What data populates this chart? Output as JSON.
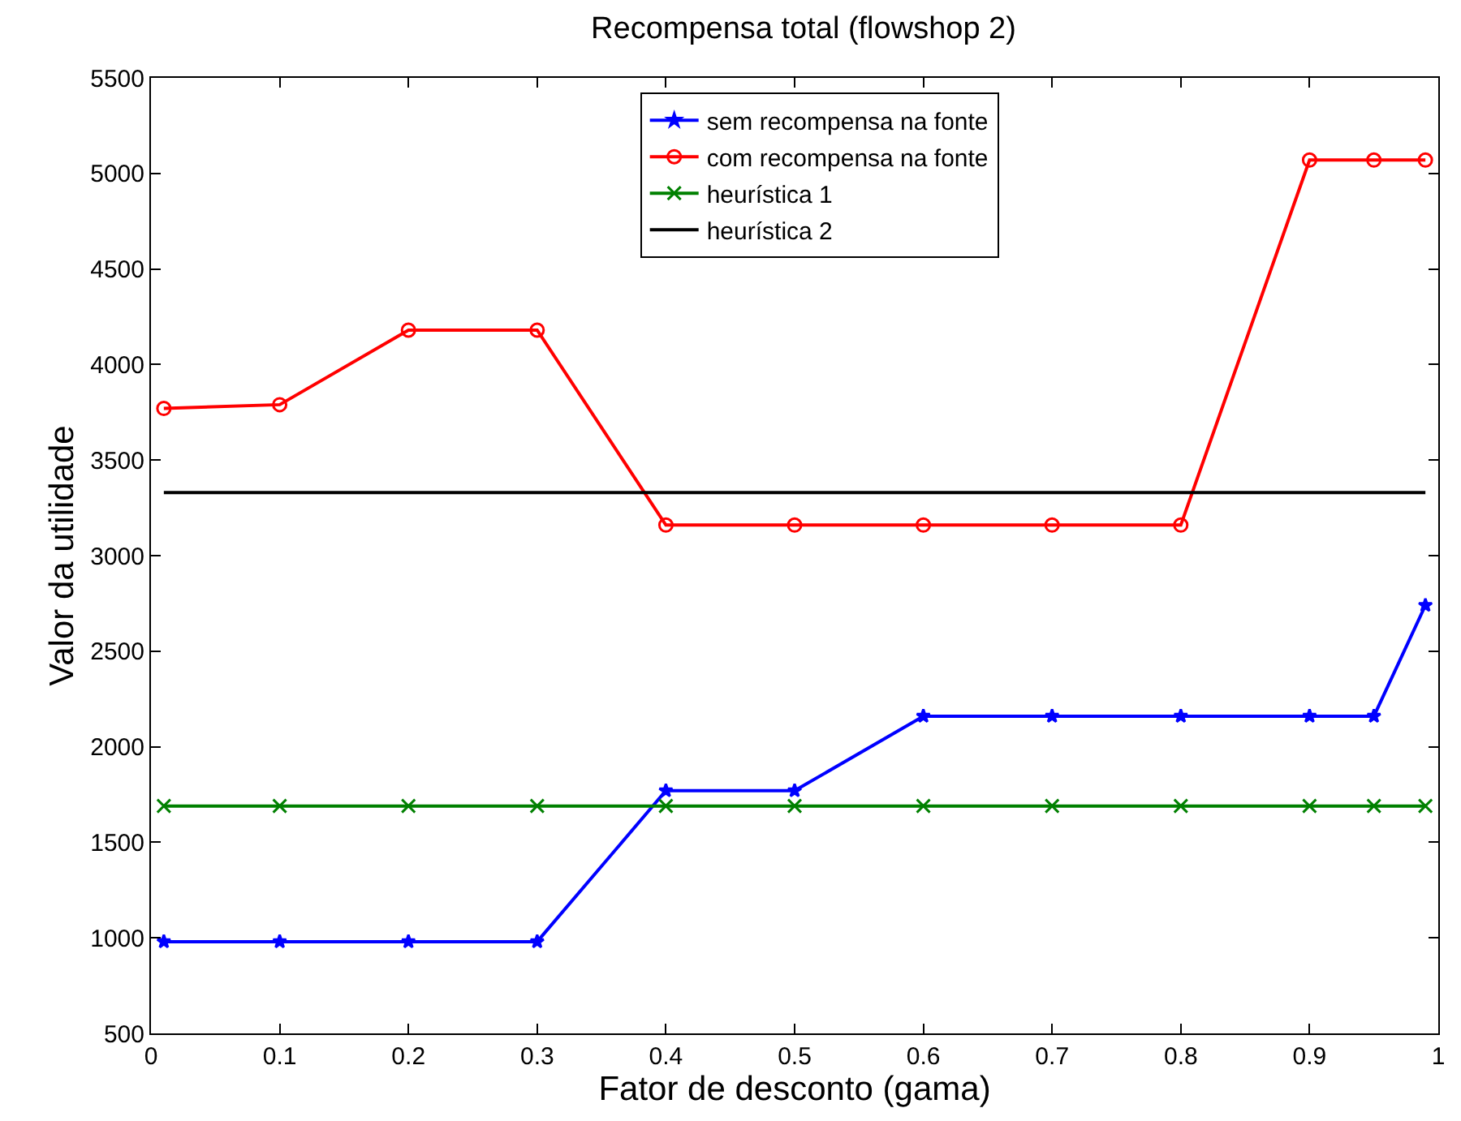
{
  "chart_data": {
    "type": "line",
    "title": "Recompensa total (flowshop 2)",
    "xlabel": "Fator de desconto (gama)",
    "ylabel": "Valor da utilidade",
    "x": [
      0.01,
      0.1,
      0.2,
      0.3,
      0.4,
      0.5,
      0.6,
      0.7,
      0.8,
      0.9,
      0.95,
      0.99
    ],
    "series": [
      {
        "name": "sem recompensa na fonte",
        "color": "#0000ff",
        "marker": "star",
        "values": [
          980,
          980,
          980,
          980,
          1770,
          1770,
          2160,
          2160,
          2160,
          2160,
          2160,
          2740
        ]
      },
      {
        "name": "com recompensa na fonte",
        "color": "#ff0000",
        "marker": "circle",
        "values": [
          3770,
          3790,
          4180,
          4180,
          3160,
          3160,
          3160,
          3160,
          3160,
          5070,
          5070,
          5070
        ]
      },
      {
        "name": "heurística 1",
        "color": "#008000",
        "marker": "cross",
        "values": [
          1690,
          1690,
          1690,
          1690,
          1690,
          1690,
          1690,
          1690,
          1690,
          1690,
          1690,
          1690
        ]
      },
      {
        "name": "heurística 2",
        "color": "#000000",
        "marker": "none",
        "values": [
          3330,
          3330,
          3330,
          3330,
          3330,
          3330,
          3330,
          3330,
          3330,
          3330,
          3330,
          3330
        ]
      }
    ],
    "xlim": [
      0,
      1
    ],
    "xticks": [
      0,
      0.1,
      0.2,
      0.3,
      0.4,
      0.5,
      0.6,
      0.7,
      0.8,
      0.9,
      1
    ],
    "ylim": [
      500,
      5500
    ],
    "yticks": [
      500,
      1000,
      1500,
      2000,
      2500,
      3000,
      3500,
      4000,
      4500,
      5000,
      5500
    ],
    "grid": false,
    "legend": "top",
    "line_style": "solid"
  }
}
